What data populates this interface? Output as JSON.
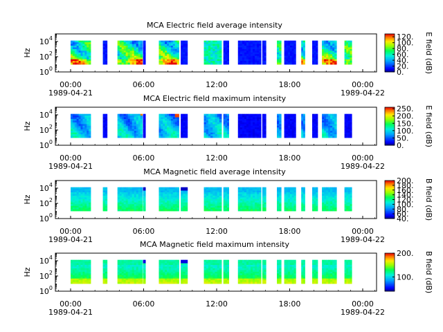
{
  "chart_data": [
    {
      "type": "heatmap",
      "title": "MCA  Electric field average intensity",
      "ylabel": "Hz",
      "ylim_log10": [
        0,
        5
      ],
      "y_ticks": [
        {
          "exp": 0,
          "label": "0"
        },
        {
          "exp": 2,
          "label": "2"
        },
        {
          "exp": 4,
          "label": "4"
        }
      ],
      "x_ticks": [
        "00:00",
        "06:00",
        "12:00",
        "18:00",
        "00:00"
      ],
      "x_dates": [
        {
          "tick": 0,
          "label": "1989-04-21"
        },
        {
          "tick": 4,
          "label": "1989-04-22"
        }
      ],
      "colorbar": {
        "label": "E field (dB)",
        "range": [
          0,
          130
        ],
        "ticks": [
          "0.",
          "20.",
          "40.",
          "60.",
          "80.",
          "100.",
          "120."
        ],
        "tick_values": [
          0,
          20,
          40,
          60,
          80,
          100,
          120
        ]
      },
      "mode": "eavg"
    },
    {
      "type": "heatmap",
      "title": "MCA  Electric field maximum intensity",
      "ylabel": "Hz",
      "ylim_log10": [
        0,
        5
      ],
      "y_ticks": [
        {
          "exp": 0,
          "label": "0"
        },
        {
          "exp": 2,
          "label": "2"
        },
        {
          "exp": 4,
          "label": "4"
        }
      ],
      "x_ticks": [
        "00:00",
        "06:00",
        "12:00",
        "18:00",
        "00:00"
      ],
      "x_dates": [
        {
          "tick": 0,
          "label": "1989-04-21"
        },
        {
          "tick": 4,
          "label": "1989-04-22"
        }
      ],
      "colorbar": {
        "label": "E field (dB)",
        "range": [
          0,
          260
        ],
        "ticks": [
          "0.",
          "50.",
          "100.",
          "150.",
          "200.",
          "250."
        ],
        "tick_values": [
          0,
          50,
          100,
          150,
          200,
          250
        ]
      },
      "mode": "emax"
    },
    {
      "type": "heatmap",
      "title": "MCA  Magnetic field average intensity",
      "ylabel": "Hz",
      "ylim_log10": [
        0,
        5
      ],
      "y_ticks": [
        {
          "exp": 0,
          "label": "0"
        },
        {
          "exp": 2,
          "label": "2"
        },
        {
          "exp": 4,
          "label": "4"
        }
      ],
      "x_ticks": [
        "00:00",
        "06:00",
        "12:00",
        "18:00",
        "00:00"
      ],
      "x_dates": [
        {
          "tick": 0,
          "label": "1989-04-21"
        },
        {
          "tick": 4,
          "label": "1989-04-22"
        }
      ],
      "colorbar": {
        "label": "B field (dB)",
        "range": [
          40,
          200
        ],
        "ticks": [
          "40.",
          "60.",
          "80.",
          "100.",
          "120.",
          "140.",
          "160.",
          "180.",
          "200."
        ],
        "tick_values": [
          40,
          60,
          80,
          100,
          120,
          140,
          160,
          180,
          200
        ]
      },
      "mode": "bavg"
    },
    {
      "type": "heatmap",
      "title": "MCA  Magnetic field maximum intensity",
      "ylabel": "Hz",
      "ylim_log10": [
        0,
        5
      ],
      "y_ticks": [
        {
          "exp": 0,
          "label": "0"
        },
        {
          "exp": 2,
          "label": "2"
        },
        {
          "exp": 4,
          "label": "4"
        }
      ],
      "x_ticks": [
        "00:00",
        "06:00",
        "12:00",
        "18:00",
        "00:00"
      ],
      "x_dates": [
        {
          "tick": 0,
          "label": "1989-04-21"
        },
        {
          "tick": 4,
          "label": "1989-04-22"
        }
      ],
      "colorbar": {
        "label": "B field (dB)",
        "range": [
          40,
          200
        ],
        "ticks": [
          "100.",
          "200."
        ],
        "tick_values": [
          100,
          200
        ]
      },
      "mode": "bmax"
    }
  ],
  "data_segments_hours": [
    [
      0.0,
      1.65
    ],
    [
      2.65,
      3.0
    ],
    [
      3.85,
      5.9
    ],
    [
      5.95,
      6.15
    ],
    [
      7.25,
      8.9
    ],
    [
      9.05,
      9.6
    ],
    [
      10.95,
      12.4
    ],
    [
      12.55,
      13.0
    ],
    [
      13.75,
      15.65
    ],
    [
      15.75,
      16.05
    ],
    [
      16.95,
      17.3
    ],
    [
      17.55,
      18.5
    ],
    [
      18.95,
      19.25
    ],
    [
      19.85,
      20.3
    ],
    [
      20.65,
      21.85
    ],
    [
      22.5,
      23.1
    ]
  ]
}
